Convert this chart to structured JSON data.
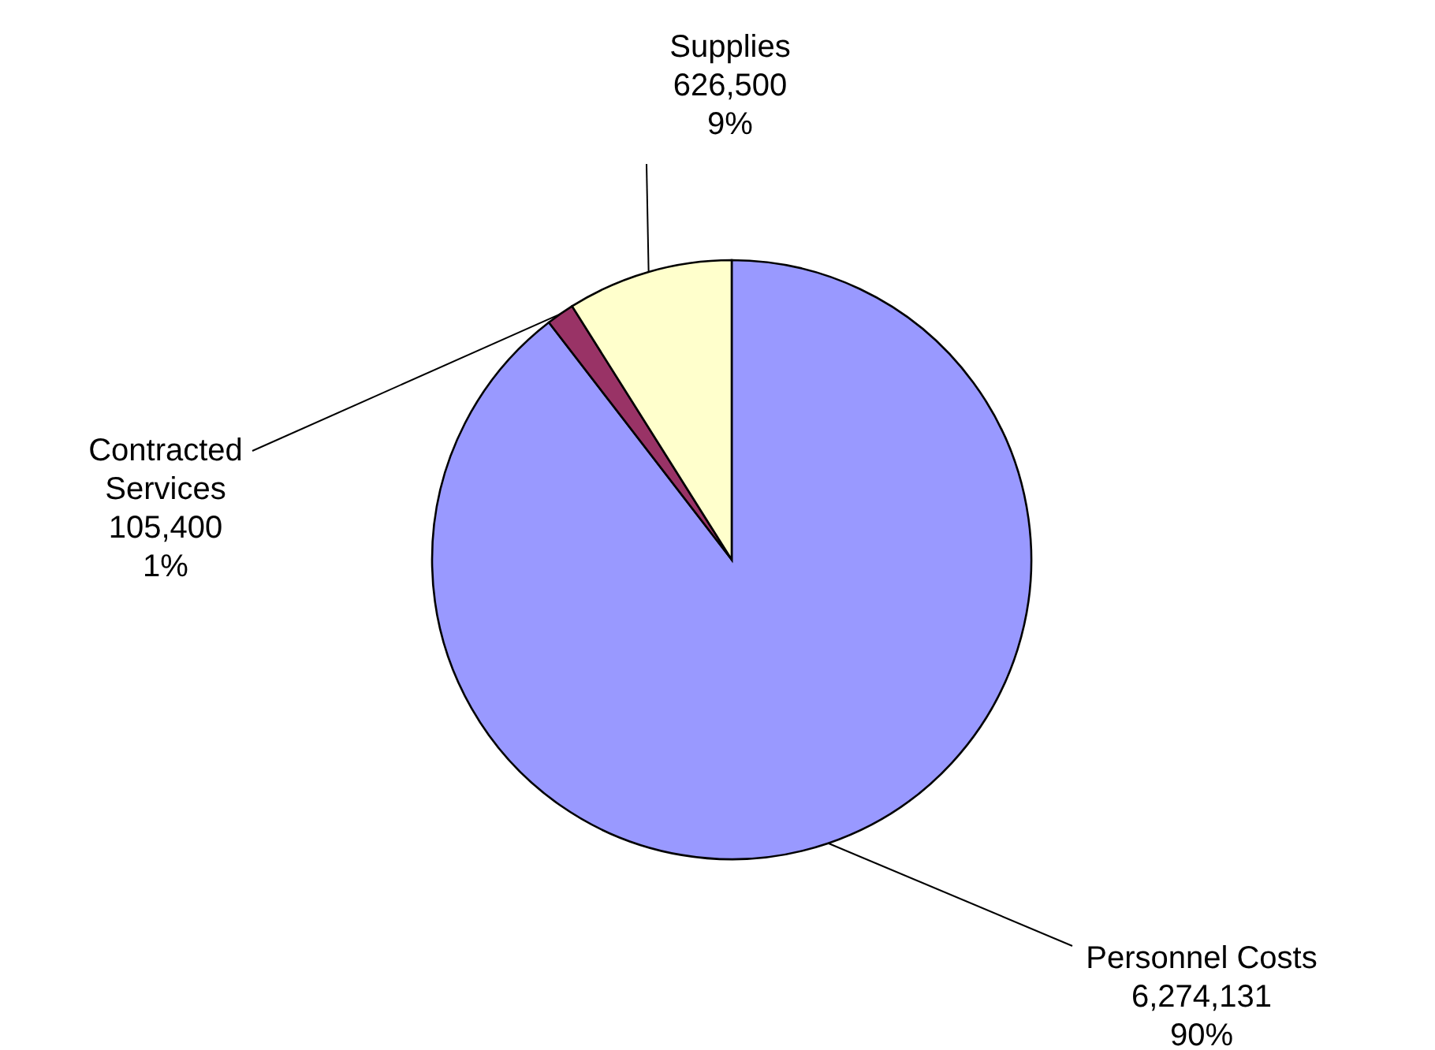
{
  "chart_data": {
    "type": "pie",
    "categories": [
      "Personnel Costs",
      "Contracted Services",
      "Supplies"
    ],
    "values": [
      6274131,
      105400,
      626500
    ],
    "colors": [
      "#9999ff",
      "#993366",
      "#ffffcc"
    ],
    "value_labels": [
      "6,274,131\n90%",
      "105,400\n1%",
      "626,500\n9%"
    ]
  }
}
